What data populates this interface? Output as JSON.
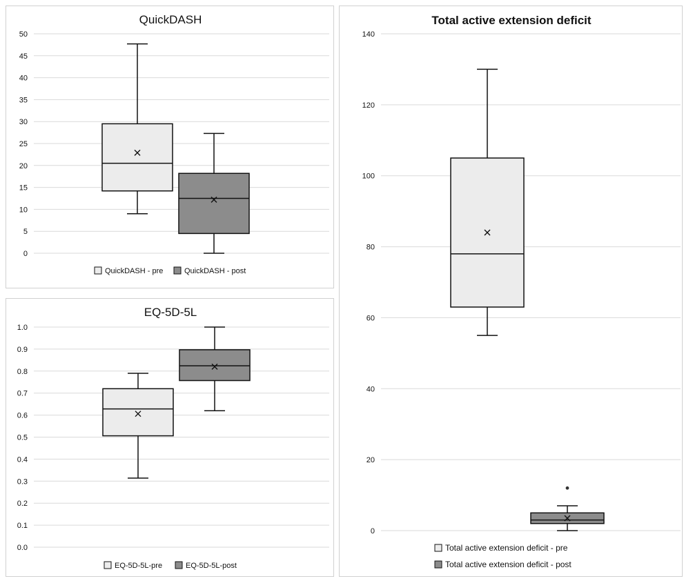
{
  "chart_data": [
    {
      "type": "box",
      "title": "QuickDASH",
      "ylim": [
        0,
        50
      ],
      "ytick_labels": [
        "0",
        "5",
        "10",
        "15",
        "20",
        "25",
        "30",
        "35",
        "40",
        "45",
        "50"
      ],
      "grid": true,
      "legend_placement": "bottom",
      "series": [
        {
          "name": "QuickDASH - pre",
          "color": "#ececec",
          "min": 9,
          "q1": 14.2,
          "median": 20.5,
          "q3": 29.5,
          "max": 47.7,
          "mean": 22.9,
          "outliers": []
        },
        {
          "name": "QuickDASH - post",
          "color": "#8c8c8c",
          "min": 0,
          "q1": 4.5,
          "median": 12.5,
          "q3": 18.2,
          "max": 27.3,
          "mean": 12.2,
          "outliers": []
        }
      ]
    },
    {
      "type": "box",
      "title": "EQ-5D-5L",
      "ylim": [
        0,
        1
      ],
      "ytick_labels": [
        "0.0",
        "0.1",
        "0.2",
        "0.3",
        "0.4",
        "0.5",
        "0.6",
        "0.7",
        "0.8",
        "0.9",
        "1.0"
      ],
      "grid": true,
      "legend_placement": "bottom",
      "series": [
        {
          "name": "EQ-5D-5L-pre",
          "color": "#ececec",
          "min": 0.314,
          "q1": 0.506,
          "median": 0.628,
          "q3": 0.72,
          "max": 0.79,
          "mean": 0.606,
          "outliers": []
        },
        {
          "name": "EQ-5D-5L-post",
          "color": "#8c8c8c",
          "min": 0.62,
          "q1": 0.757,
          "median": 0.824,
          "q3": 0.897,
          "max": 1.0,
          "mean": 0.82,
          "outliers": []
        }
      ]
    },
    {
      "type": "box",
      "title": "Total active extension deficit",
      "ylim": [
        0,
        140
      ],
      "ytick_labels": [
        "0",
        "20",
        "40",
        "60",
        "80",
        "100",
        "120",
        "140"
      ],
      "grid": true,
      "legend_placement": "bottom",
      "series": [
        {
          "name": "Total active extension deficit - pre",
          "color": "#ececec",
          "min": 55,
          "q1": 63,
          "median": 78,
          "q3": 105,
          "max": 130,
          "mean": 84,
          "outliers": []
        },
        {
          "name": "Total active extension deficit - post",
          "color": "#8c8c8c",
          "min": 0,
          "q1": 2,
          "median": 3,
          "q3": 5,
          "max": 7,
          "mean": 3.5,
          "outliers": [
            12
          ]
        }
      ]
    }
  ]
}
